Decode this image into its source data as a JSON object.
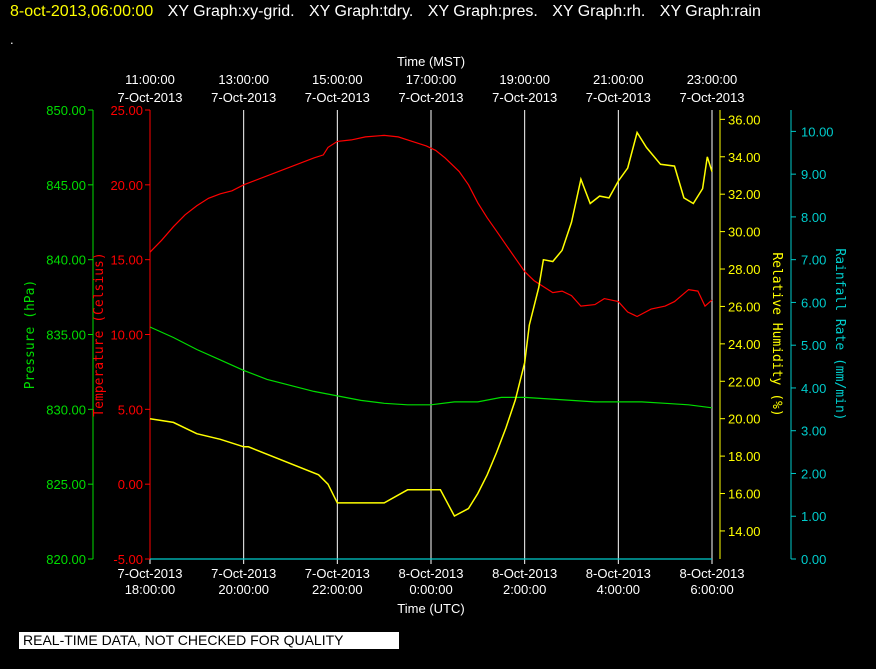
{
  "header": {
    "timestamp": "8-oct-2013,06:00:00",
    "graphs": [
      "XY Graph:xy-grid.",
      "XY Graph:tdry.",
      "XY Graph:pres.",
      "XY Graph:rh.",
      "XY Graph:rain"
    ],
    "dot": "."
  },
  "disclaimer": "REAL-TIME DATA, NOT CHECKED FOR QUALITY",
  "colors": {
    "pressure": "#00dd00",
    "temperature": "#ff0000",
    "humidity": "#ffff00",
    "rain": "#00cccc",
    "grid": "#ffffff"
  },
  "chart_data": {
    "type": "line",
    "x_top": {
      "title": "Time (MST)",
      "ticks": [
        {
          "t": 0,
          "time": "11:00:00",
          "date": "7-Oct-2013"
        },
        {
          "t": 2,
          "time": "13:00:00",
          "date": "7-Oct-2013"
        },
        {
          "t": 4,
          "time": "15:00:00",
          "date": "7-Oct-2013"
        },
        {
          "t": 6,
          "time": "17:00:00",
          "date": "7-Oct-2013"
        },
        {
          "t": 8,
          "time": "19:00:00",
          "date": "7-Oct-2013"
        },
        {
          "t": 10,
          "time": "21:00:00",
          "date": "7-Oct-2013"
        },
        {
          "t": 12,
          "time": "23:00:00",
          "date": "7-Oct-2013"
        }
      ]
    },
    "x_bottom": {
      "title": "Time (UTC)",
      "ticks": [
        {
          "t": 0,
          "date": "7-Oct-2013",
          "time": "18:00:00"
        },
        {
          "t": 2,
          "date": "7-Oct-2013",
          "time": "20:00:00"
        },
        {
          "t": 4,
          "date": "7-Oct-2013",
          "time": "22:00:00"
        },
        {
          "t": 6,
          "date": "8-Oct-2013",
          "time": "0:00:00"
        },
        {
          "t": 8,
          "date": "8-Oct-2013",
          "time": "2:00:00"
        },
        {
          "t": 10,
          "date": "8-Oct-2013",
          "time": "4:00:00"
        },
        {
          "t": 12,
          "date": "8-Oct-2013",
          "time": "6:00:00"
        }
      ]
    },
    "xlim": [
      0,
      12
    ],
    "axes": {
      "pressure": {
        "label": "Pressure (hPa)",
        "lim": [
          820,
          850
        ],
        "ticks": [
          "820.00",
          "825.00",
          "830.00",
          "835.00",
          "840.00",
          "845.00",
          "850.00"
        ]
      },
      "temperature": {
        "label": "Temperature (Celsius)",
        "lim": [
          -5,
          25
        ],
        "ticks": [
          "-5.00",
          "0.00",
          "5.00",
          "10.00",
          "15.00",
          "20.00",
          "25.00"
        ]
      },
      "humidity": {
        "label": "Relative Humidity (%)",
        "lim": [
          12.5,
          36.5
        ],
        "ticks": [
          "14.00",
          "16.00",
          "18.00",
          "20.00",
          "22.00",
          "24.00",
          "26.00",
          "28.00",
          "30.00",
          "32.00",
          "34.00",
          "36.00"
        ]
      },
      "rain": {
        "label": "Rainfall Rate (mm/min)",
        "lim": [
          0,
          10.5
        ],
        "ticks": [
          "0.00",
          "1.00",
          "2.00",
          "3.00",
          "4.00",
          "5.00",
          "6.00",
          "7.00",
          "8.00",
          "9.00",
          "10.00"
        ]
      }
    },
    "series": [
      {
        "key": "pressure",
        "name": "Pressure (hPa)",
        "points": [
          [
            0,
            835.5
          ],
          [
            0.5,
            834.8
          ],
          [
            1,
            834
          ],
          [
            1.5,
            833.3
          ],
          [
            2,
            832.6
          ],
          [
            2.5,
            832
          ],
          [
            3,
            831.6
          ],
          [
            3.5,
            831.2
          ],
          [
            4,
            830.9
          ],
          [
            4.5,
            830.6
          ],
          [
            5,
            830.4
          ],
          [
            5.5,
            830.3
          ],
          [
            6,
            830.3
          ],
          [
            6.5,
            830.5
          ],
          [
            7,
            830.5
          ],
          [
            7.5,
            830.8
          ],
          [
            8,
            830.8
          ],
          [
            8.5,
            830.7
          ],
          [
            9,
            830.6
          ],
          [
            9.5,
            830.5
          ],
          [
            10,
            830.5
          ],
          [
            10.5,
            830.5
          ],
          [
            11,
            830.4
          ],
          [
            11.5,
            830.3
          ],
          [
            12,
            830.1
          ]
        ]
      },
      {
        "key": "temperature",
        "name": "Temperature (Celsius)",
        "points": [
          [
            0,
            15.5
          ],
          [
            0.25,
            16.3
          ],
          [
            0.5,
            17.2
          ],
          [
            0.75,
            18
          ],
          [
            1,
            18.6
          ],
          [
            1.25,
            19.1
          ],
          [
            1.5,
            19.4
          ],
          [
            1.75,
            19.6
          ],
          [
            2,
            20
          ],
          [
            3.5,
            21.8
          ],
          [
            3.7,
            22
          ],
          [
            3.8,
            22.5
          ],
          [
            4,
            22.9
          ],
          [
            4.3,
            23
          ],
          [
            4.6,
            23.2
          ],
          [
            5,
            23.3
          ],
          [
            5.3,
            23.2
          ],
          [
            5.6,
            22.9
          ],
          [
            5.9,
            22.6
          ],
          [
            6.1,
            22.3
          ],
          [
            6.3,
            21.8
          ],
          [
            6.6,
            20.9
          ],
          [
            6.8,
            20
          ],
          [
            7,
            18.8
          ],
          [
            7.2,
            17.8
          ],
          [
            7.4,
            16.9
          ],
          [
            7.6,
            16
          ],
          [
            7.8,
            15.1
          ],
          [
            8,
            14.2
          ],
          [
            8.2,
            13.6
          ],
          [
            8.4,
            13.2
          ],
          [
            8.6,
            12.8
          ],
          [
            8.8,
            12.9
          ],
          [
            9,
            12.6
          ],
          [
            9.2,
            11.9
          ],
          [
            9.5,
            12
          ],
          [
            9.7,
            12.4
          ],
          [
            10,
            12.2
          ],
          [
            10.2,
            11.5
          ],
          [
            10.4,
            11.2
          ],
          [
            10.7,
            11.7
          ],
          [
            11,
            11.9
          ],
          [
            11.2,
            12.2
          ],
          [
            11.5,
            13
          ],
          [
            11.7,
            12.9
          ],
          [
            11.85,
            11.9
          ],
          [
            12,
            12.3
          ]
        ]
      },
      {
        "key": "humidity",
        "name": "Relative Humidity (%)",
        "points": [
          [
            0,
            20
          ],
          [
            0.5,
            19.8
          ],
          [
            1,
            19.2
          ],
          [
            1.5,
            18.9
          ],
          [
            2,
            18.5
          ],
          [
            2.1,
            18.5
          ],
          [
            3.6,
            17
          ],
          [
            3.8,
            16.5
          ],
          [
            4,
            15.5
          ],
          [
            4.5,
            15.5
          ],
          [
            5,
            15.5
          ],
          [
            5.5,
            16.2
          ],
          [
            6,
            16.2
          ],
          [
            6.2,
            16.2
          ],
          [
            6.5,
            14.8
          ],
          [
            6.8,
            15.2
          ],
          [
            7,
            16
          ],
          [
            7.2,
            17
          ],
          [
            7.4,
            18.2
          ],
          [
            7.6,
            19.5
          ],
          [
            7.8,
            21
          ],
          [
            8,
            23
          ],
          [
            8.1,
            25
          ],
          [
            8.2,
            26
          ],
          [
            8.3,
            27
          ],
          [
            8.4,
            28.5
          ],
          [
            8.6,
            28.4
          ],
          [
            8.8,
            29
          ],
          [
            9,
            30.5
          ],
          [
            9.2,
            32.8
          ],
          [
            9.4,
            31.5
          ],
          [
            9.6,
            31.9
          ],
          [
            9.8,
            31.8
          ],
          [
            10,
            32.7
          ],
          [
            10.2,
            33.4
          ],
          [
            10.4,
            35.3
          ],
          [
            10.6,
            34.5
          ],
          [
            10.9,
            33.6
          ],
          [
            11.2,
            33.5
          ],
          [
            11.4,
            31.8
          ],
          [
            11.6,
            31.5
          ],
          [
            11.8,
            32.3
          ],
          [
            11.9,
            34
          ],
          [
            12,
            33.2
          ]
        ]
      },
      {
        "key": "rain",
        "name": "Rainfall Rate (mm/min)",
        "points": [
          [
            0,
            0
          ],
          [
            12,
            0
          ]
        ]
      }
    ]
  }
}
